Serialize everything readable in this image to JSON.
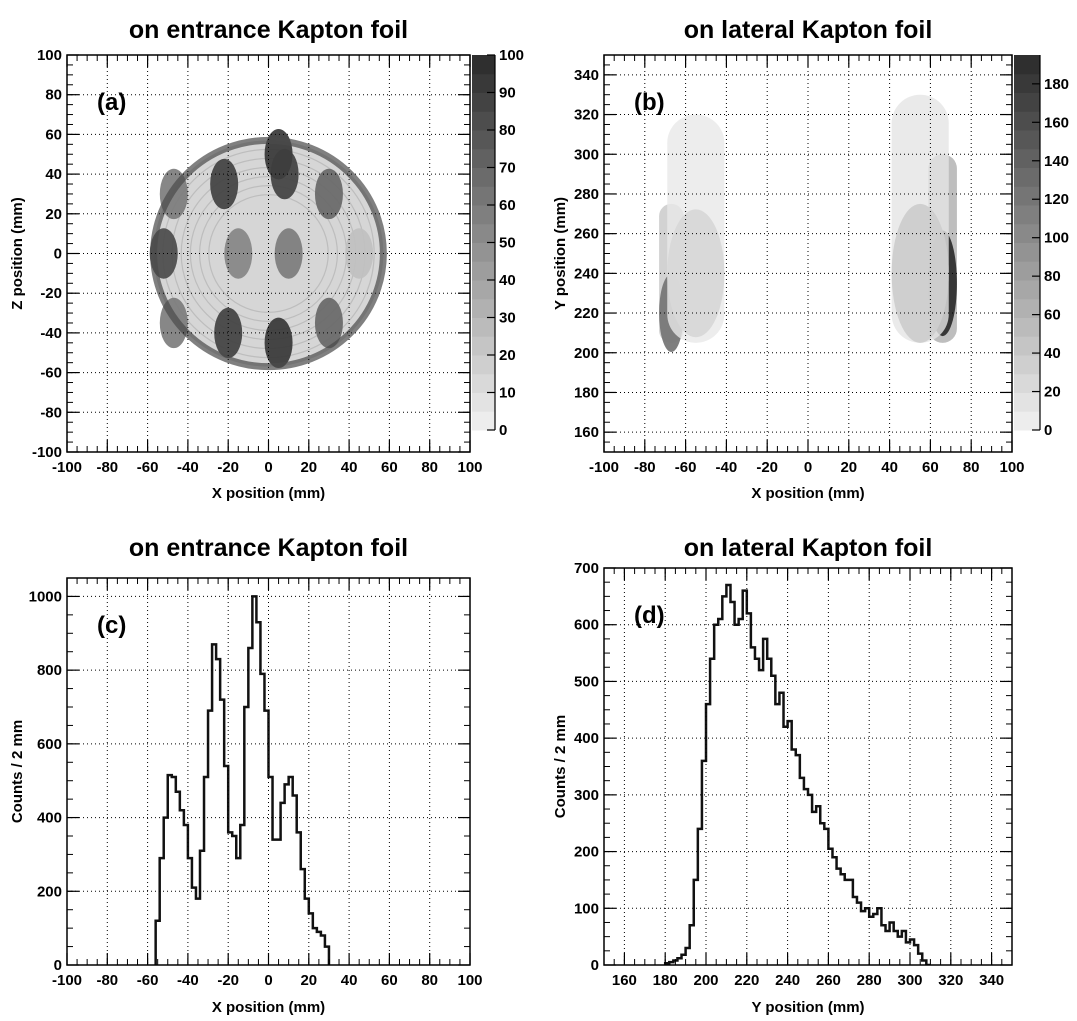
{
  "colors": {
    "axis": "#000000",
    "grid": "#000000",
    "line": "#111111",
    "shade_min": "#f2f2f2",
    "shade_max": "#2a2a2a"
  },
  "chart_data": [
    {
      "id": "a",
      "type": "heatmap",
      "title": "on entrance Kapton foil",
      "panel_label": "(a)",
      "xlabel": "X position (mm)",
      "ylabel": "Z position (mm)",
      "xlim": [
        -100,
        100
      ],
      "ylim": [
        -100,
        100
      ],
      "xticks": [
        -100,
        -80,
        -60,
        -40,
        -20,
        0,
        20,
        40,
        60,
        80,
        100
      ],
      "yticks": [
        -100,
        -80,
        -60,
        -40,
        -20,
        0,
        20,
        40,
        60,
        80,
        100
      ],
      "grid": true,
      "colorbar": {
        "min": 0,
        "max": 100,
        "ticks": [
          0,
          10,
          20,
          30,
          40,
          50,
          60,
          70,
          80,
          90,
          100
        ]
      },
      "shape": "disc",
      "disc_center": [
        0,
        0
      ],
      "disc_radius": 57,
      "hotspots": [
        {
          "x": -52,
          "z": 0,
          "value": 85
        },
        {
          "x": -47,
          "z": 30,
          "value": 60
        },
        {
          "x": -47,
          "z": -35,
          "value": 60
        },
        {
          "x": -22,
          "z": 35,
          "value": 90
        },
        {
          "x": -20,
          "z": -40,
          "value": 90
        },
        {
          "x": -15,
          "z": 0,
          "value": 55
        },
        {
          "x": 5,
          "z": 50,
          "value": 95
        },
        {
          "x": 8,
          "z": 40,
          "value": 90
        },
        {
          "x": 5,
          "z": -45,
          "value": 95
        },
        {
          "x": 10,
          "z": 0,
          "value": 60
        },
        {
          "x": 30,
          "z": 30,
          "value": 70
        },
        {
          "x": 30,
          "z": -35,
          "value": 70
        },
        {
          "x": 45,
          "z": 0,
          "value": 25
        }
      ]
    },
    {
      "id": "b",
      "type": "heatmap",
      "title": "on lateral Kapton foil",
      "panel_label": "(b)",
      "xlabel": "X position (mm)",
      "ylabel": "Y position (mm)",
      "xlim": [
        -100,
        100
      ],
      "ylim": [
        150,
        350
      ],
      "xticks": [
        -100,
        -80,
        -60,
        -40,
        -20,
        0,
        20,
        40,
        60,
        80,
        100
      ],
      "yticks": [
        160,
        180,
        200,
        220,
        240,
        260,
        280,
        300,
        320,
        340
      ],
      "grid": true,
      "colorbar": {
        "min": 0,
        "max": 195,
        "ticks": [
          0,
          20,
          40,
          60,
          80,
          100,
          120,
          140,
          160,
          180
        ]
      },
      "bands": [
        {
          "x": -67,
          "x_halfwidth": 6,
          "y_min": 205,
          "y_max": 275,
          "peak_y": 220,
          "value": 120
        },
        {
          "x": 66,
          "x_halfwidth": 7,
          "y_min": 205,
          "y_max": 300,
          "peak_y": 235,
          "value": 190
        },
        {
          "x": -55,
          "x_halfwidth": 14,
          "y_min": 205,
          "y_max": 320,
          "peak_y": 240,
          "value": 25
        },
        {
          "x": 55,
          "x_halfwidth": 14,
          "y_min": 205,
          "y_max": 330,
          "peak_y": 240,
          "value": 35
        }
      ]
    },
    {
      "id": "c",
      "type": "line",
      "style": "step",
      "title": "on entrance Kapton foil",
      "panel_label": "(c)",
      "xlabel": "X position (mm)",
      "ylabel": "Counts / 2 mm",
      "xlim": [
        -100,
        100
      ],
      "ylim": [
        0,
        1050
      ],
      "xticks": [
        -100,
        -80,
        -60,
        -40,
        -20,
        0,
        20,
        40,
        60,
        80,
        100
      ],
      "yticks": [
        0,
        200,
        400,
        600,
        800,
        1000
      ],
      "grid": true,
      "bin_width": 2,
      "x_start": -56,
      "values": [
        120,
        290,
        400,
        515,
        510,
        470,
        420,
        380,
        290,
        210,
        180,
        310,
        510,
        690,
        870,
        830,
        720,
        540,
        360,
        350,
        290,
        380,
        700,
        860,
        1000,
        930,
        790,
        690,
        510,
        340,
        340,
        440,
        490,
        510,
        460,
        360,
        260,
        180,
        140,
        100,
        90,
        80,
        50
      ]
    },
    {
      "id": "d",
      "type": "line",
      "style": "step",
      "title": "on lateral Kapton foil",
      "panel_label": "(d)",
      "xlabel": "Y position (mm)",
      "ylabel": "Counts / 2 mm",
      "xlim": [
        150,
        350
      ],
      "ylim": [
        0,
        700
      ],
      "xticks": [
        160,
        180,
        200,
        220,
        240,
        260,
        280,
        300,
        320,
        340
      ],
      "yticks": [
        0,
        100,
        200,
        300,
        400,
        500,
        600,
        700
      ],
      "grid": true,
      "bin_width": 2,
      "x_start": 180,
      "values": [
        3,
        5,
        8,
        12,
        18,
        30,
        70,
        150,
        240,
        360,
        460,
        540,
        600,
        610,
        650,
        670,
        640,
        600,
        610,
        660,
        620,
        560,
        540,
        520,
        575,
        540,
        510,
        460,
        480,
        420,
        430,
        380,
        370,
        330,
        310,
        300,
        270,
        280,
        250,
        240,
        205,
        190,
        170,
        160,
        150,
        150,
        120,
        110,
        95,
        100,
        85,
        90,
        100,
        70,
        60,
        75,
        60,
        50,
        60,
        40,
        45,
        35,
        20,
        8,
        0
      ]
    }
  ]
}
